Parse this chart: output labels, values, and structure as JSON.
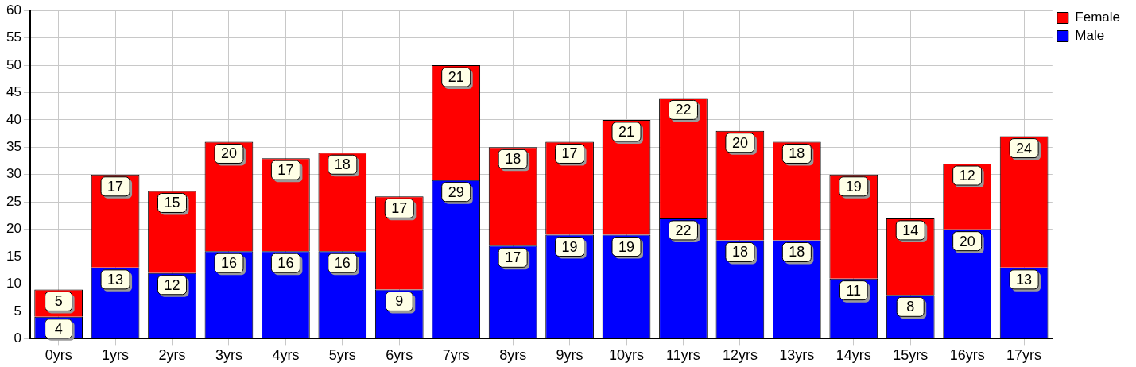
{
  "chart_data": {
    "type": "bar",
    "stacked": true,
    "categories": [
      "0yrs",
      "1yrs",
      "2yrs",
      "3yrs",
      "4yrs",
      "5yrs",
      "6yrs",
      "7yrs",
      "8yrs",
      "9yrs",
      "10yrs",
      "11yrs",
      "12yrs",
      "13yrs",
      "14yrs",
      "15yrs",
      "16yrs",
      "17yrs"
    ],
    "series": [
      {
        "name": "Male",
        "color": "#0000ff",
        "values": [
          4,
          13,
          12,
          16,
          16,
          16,
          9,
          29,
          17,
          19,
          19,
          22,
          18,
          18,
          11,
          8,
          20,
          13
        ]
      },
      {
        "name": "Female",
        "color": "#ff0000",
        "values": [
          5,
          17,
          15,
          20,
          17,
          18,
          17,
          21,
          18,
          17,
          21,
          22,
          20,
          18,
          19,
          14,
          12,
          24
        ]
      }
    ],
    "ylim": [
      0,
      60
    ],
    "yticks": [
      0,
      5,
      10,
      15,
      20,
      25,
      30,
      35,
      40,
      45,
      50,
      55,
      60
    ],
    "grid": true,
    "legend": "top right",
    "data_labels": true
  }
}
